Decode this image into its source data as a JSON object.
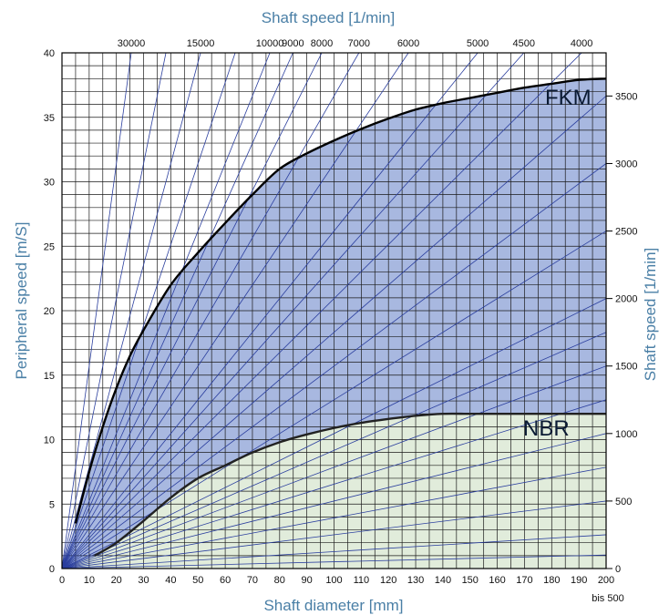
{
  "chart_data": {
    "type": "area",
    "title": "",
    "xlabel": "Shaft diameter [mm]",
    "ylabel": "Peripheral speed [m/S]",
    "top_label": "Shaft speed [1/min]",
    "right_label": "Shaft speed [1/min]",
    "xlim": [
      0,
      200
    ],
    "ylim": [
      0,
      40
    ],
    "x_ticks": [
      0,
      10,
      20,
      30,
      40,
      50,
      60,
      70,
      80,
      90,
      100,
      110,
      120,
      130,
      140,
      150,
      160,
      170,
      180,
      190,
      200
    ],
    "y_ticks": [
      0,
      5,
      10,
      15,
      20,
      25,
      30,
      35,
      40
    ],
    "x_extra_label": "bis 500",
    "top_ticks": [
      {
        "label": "30000",
        "rpm": 30000
      },
      {
        "label": "15000",
        "rpm": 15000
      },
      {
        "label": "10000",
        "rpm": 10000
      },
      {
        "label": "9000",
        "rpm": 9000
      },
      {
        "label": "8000",
        "rpm": 8000
      },
      {
        "label": "7000",
        "rpm": 7000
      },
      {
        "label": "6000",
        "rpm": 6000
      },
      {
        "label": "5000",
        "rpm": 5000
      },
      {
        "label": "4500",
        "rpm": 4500
      },
      {
        "label": "4000",
        "rpm": 4000
      }
    ],
    "right_ticks": [
      {
        "label": "0",
        "rpm": 0
      },
      {
        "label": "500",
        "rpm": 500
      },
      {
        "label": "1000",
        "rpm": 1000
      },
      {
        "label": "1500",
        "rpm": 1500
      },
      {
        "label": "2000",
        "rpm": 2000
      },
      {
        "label": "2500",
        "rpm": 2500
      },
      {
        "label": "3000",
        "rpm": 3000
      },
      {
        "label": "3500",
        "rpm": 3500
      }
    ],
    "speed_lines_rpm": [
      30000,
      20000,
      15000,
      12000,
      10000,
      9000,
      8000,
      7000,
      6000,
      5000,
      4500,
      4000,
      3500,
      3000,
      2500,
      2000,
      1750,
      1500,
      1250,
      1000,
      750,
      500,
      250,
      100
    ],
    "grid": true,
    "series": [
      {
        "name": "FKM",
        "color": "#a8b8e0",
        "x": [
          5,
          10,
          15,
          20,
          25,
          30,
          40,
          50,
          60,
          70,
          80,
          90,
          100,
          110,
          120,
          130,
          140,
          150,
          160,
          170,
          180,
          190,
          200
        ],
        "y": [
          3.5,
          7.5,
          11,
          14,
          16.5,
          18.5,
          22,
          24.5,
          26.8,
          29,
          31,
          32.2,
          33.2,
          34.1,
          34.9,
          35.6,
          36.1,
          36.5,
          36.9,
          37.3,
          37.6,
          37.9,
          38
        ]
      },
      {
        "name": "NBR",
        "color": "#e1ecdb",
        "x": [
          12,
          20,
          30,
          40,
          50,
          60,
          70,
          80,
          90,
          100,
          110,
          120,
          130,
          140,
          150,
          160,
          170,
          180,
          190,
          200
        ],
        "y": [
          1,
          2,
          3.7,
          5.5,
          7,
          8,
          9,
          9.8,
          10.4,
          10.9,
          11.3,
          11.6,
          11.85,
          12,
          12,
          12,
          12,
          12,
          12,
          12
        ]
      }
    ]
  }
}
